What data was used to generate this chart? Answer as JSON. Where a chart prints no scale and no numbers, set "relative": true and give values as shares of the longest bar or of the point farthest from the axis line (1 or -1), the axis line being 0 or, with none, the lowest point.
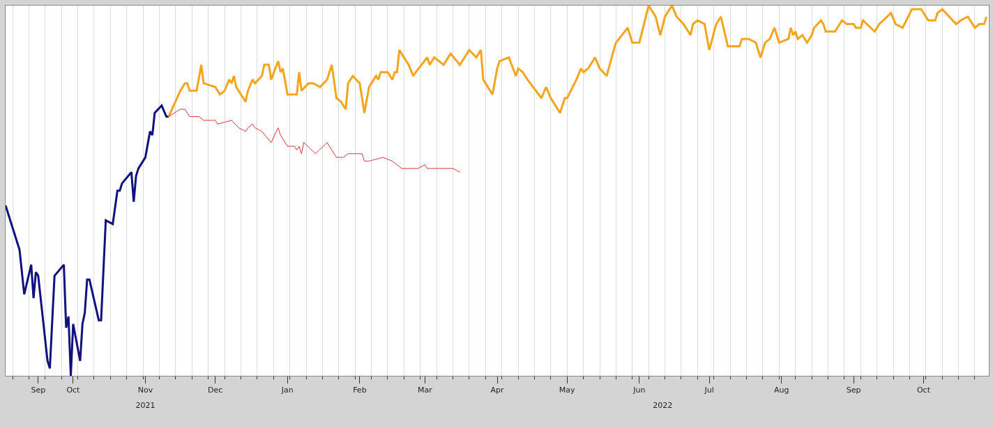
{
  "chart_data": {
    "type": "line",
    "relative": true,
    "grid": "x",
    "marker": "none",
    "line_style": "solid",
    "xlim": [
      "2021-09-02",
      "2022-10-29"
    ],
    "xticks": [
      {
        "value": "2021-09-16",
        "label": "Sep"
      },
      {
        "value": "2021-10-01",
        "label": "Oct"
      },
      {
        "value": "2021-11-01",
        "label": "Nov"
      },
      {
        "value": "2021-12-01",
        "label": "Dec"
      },
      {
        "value": "2022-01-01",
        "label": "Jan"
      },
      {
        "value": "2022-02-01",
        "label": "Feb"
      },
      {
        "value": "2022-03-01",
        "label": "Mar"
      },
      {
        "value": "2022-04-01",
        "label": "Apr"
      },
      {
        "value": "2022-05-01",
        "label": "May"
      },
      {
        "value": "2022-06-01",
        "label": "Jun"
      },
      {
        "value": "2022-07-01",
        "label": "Jul"
      },
      {
        "value": "2022-08-01",
        "label": "Aug"
      },
      {
        "value": "2022-09-01",
        "label": "Sep"
      },
      {
        "value": "2022-10-01",
        "label": "Oct"
      }
    ],
    "x2lim": [
      "2021-09-02",
      "2022-10-29"
    ],
    "x2ticks": [
      {
        "value": "2021-11-01",
        "label": "2021"
      },
      {
        "value": "2022-06-11",
        "label": "2022"
      }
    ],
    "series": [
      {
        "color": "#10107e",
        "x": [
          "2021-09-02",
          "2021-09-08",
          "2021-09-10",
          "2021-09-13",
          "2021-09-14",
          "2021-09-15",
          "2021-09-16",
          "2021-09-20",
          "2021-09-21",
          "2021-09-23",
          "2021-09-27",
          "2021-09-28",
          "2021-09-29",
          "2021-09-30",
          "2021-10-01",
          "2021-10-04",
          "2021-10-05",
          "2021-10-06",
          "2021-10-07",
          "2021-10-08",
          "2021-10-12",
          "2021-10-13",
          "2021-10-15",
          "2021-10-18",
          "2021-10-20",
          "2021-10-21",
          "2021-10-22",
          "2021-10-26",
          "2021-10-27",
          "2021-10-28",
          "2021-10-29",
          "2021-11-01",
          "2021-11-03",
          "2021-11-04",
          "2021-11-05",
          "2021-11-08",
          "2021-11-10",
          "2021-11-11"
        ],
        "values": [
          0.46,
          0.34,
          0.22,
          0.3,
          0.21,
          0.28,
          0.27,
          0.04,
          0.02,
          0.27,
          0.3,
          0.13,
          0.16,
          0,
          0.14,
          0.04,
          0.14,
          0.17,
          0.26,
          0.26,
          0.15,
          0.15,
          0.42,
          0.41,
          0.5,
          0.5,
          0.52,
          0.55,
          0.47,
          0.54,
          0.56,
          0.59,
          0.66,
          0.65,
          0.71,
          0.73,
          0.7,
          0.7
        ]
      },
      {
        "color": "#f5a51c",
        "x": [
          "2021-11-11",
          "2021-11-16",
          "2021-11-18",
          "2021-11-19",
          "2021-11-20",
          "2021-11-23",
          "2021-11-25",
          "2021-11-26",
          "2021-12-01",
          "2021-12-03",
          "2021-12-05",
          "2021-12-07",
          "2021-12-08",
          "2021-12-09",
          "2021-12-10",
          "2021-12-12",
          "2021-12-14",
          "2021-12-15",
          "2021-12-17",
          "2021-12-18",
          "2021-12-21",
          "2021-12-22",
          "2021-12-24",
          "2021-12-25",
          "2021-12-28",
          "2021-12-29",
          "2021-12-30",
          "2022-01-01",
          "2022-01-04",
          "2022-01-05",
          "2022-01-06",
          "2022-01-07",
          "2022-01-10",
          "2022-01-12",
          "2022-01-15",
          "2022-01-18",
          "2022-01-20",
          "2022-01-22",
          "2022-01-24",
          "2022-01-26",
          "2022-01-27",
          "2022-01-29",
          "2022-02-01",
          "2022-02-03",
          "2022-02-05",
          "2022-02-08",
          "2022-02-09",
          "2022-02-10",
          "2022-02-12",
          "2022-02-13",
          "2022-02-15",
          "2022-02-16",
          "2022-02-17",
          "2022-02-18",
          "2022-02-22",
          "2022-02-24",
          "2022-02-25",
          "2022-03-02",
          "2022-03-03",
          "2022-03-05",
          "2022-03-09",
          "2022-03-12",
          "2022-03-16",
          "2022-03-18",
          "2022-03-20",
          "2022-03-23",
          "2022-03-25",
          "2022-03-26",
          "2022-03-30",
          "2022-04-01",
          "2022-04-02",
          "2022-04-06",
          "2022-04-09",
          "2022-04-10",
          "2022-04-12",
          "2022-04-14",
          "2022-04-20",
          "2022-04-22",
          "2022-04-24",
          "2022-04-28",
          "2022-04-30",
          "2022-05-01",
          "2022-05-05",
          "2022-05-07",
          "2022-05-08",
          "2022-05-10",
          "2022-05-13",
          "2022-05-15",
          "2022-05-18",
          "2022-05-21",
          "2022-05-22",
          "2022-05-27",
          "2022-05-29",
          "2022-06-01",
          "2022-06-03",
          "2022-06-05",
          "2022-06-08",
          "2022-06-10",
          "2022-06-12",
          "2022-06-15",
          "2022-06-17",
          "2022-06-20",
          "2022-06-23",
          "2022-06-24",
          "2022-06-26",
          "2022-06-29",
          "2022-07-01",
          "2022-07-04",
          "2022-07-06",
          "2022-07-09",
          "2022-07-14",
          "2022-07-15",
          "2022-07-18",
          "2022-07-21",
          "2022-07-23",
          "2022-07-25",
          "2022-07-27",
          "2022-07-29",
          "2022-07-31",
          "2022-08-04",
          "2022-08-05",
          "2022-08-06",
          "2022-08-07",
          "2022-08-08",
          "2022-08-10",
          "2022-08-12",
          "2022-08-14",
          "2022-08-15",
          "2022-08-18",
          "2022-08-19",
          "2022-08-20",
          "2022-08-24",
          "2022-08-27",
          "2022-08-29",
          "2022-09-01",
          "2022-09-02",
          "2022-09-04",
          "2022-09-05",
          "2022-09-10",
          "2022-09-12",
          "2022-09-17",
          "2022-09-19",
          "2022-09-22",
          "2022-09-26",
          "2022-09-30",
          "2022-10-03",
          "2022-10-06",
          "2022-10-07",
          "2022-10-09",
          "2022-10-15",
          "2022-10-17",
          "2022-10-20",
          "2022-10-23",
          "2022-10-25",
          "2022-10-27",
          "2022-10-28"
        ],
        "values": [
          0.7,
          0.77,
          0.79,
          0.79,
          0.77,
          0.77,
          0.84,
          0.79,
          0.78,
          0.76,
          0.77,
          0.8,
          0.79,
          0.81,
          0.78,
          0.76,
          0.74,
          0.77,
          0.8,
          0.79,
          0.81,
          0.84,
          0.84,
          0.8,
          0.85,
          0.82,
          0.83,
          0.76,
          0.76,
          0.76,
          0.82,
          0.77,
          0.79,
          0.79,
          0.78,
          0.8,
          0.84,
          0.75,
          0.74,
          0.72,
          0.79,
          0.81,
          0.79,
          0.71,
          0.78,
          0.81,
          0.8,
          0.82,
          0.82,
          0.82,
          0.8,
          0.82,
          0.82,
          0.88,
          0.84,
          0.81,
          0.82,
          0.86,
          0.84,
          0.86,
          0.84,
          0.87,
          0.84,
          0.86,
          0.88,
          0.86,
          0.88,
          0.8,
          0.76,
          0.83,
          0.85,
          0.86,
          0.81,
          0.83,
          0.82,
          0.8,
          0.75,
          0.78,
          0.75,
          0.71,
          0.75,
          0.75,
          0.8,
          0.83,
          0.82,
          0.83,
          0.86,
          0.83,
          0.81,
          0.88,
          0.9,
          0.94,
          0.9,
          0.9,
          0.95,
          1.0,
          0.97,
          0.92,
          0.97,
          1.0,
          0.97,
          0.95,
          0.92,
          0.95,
          0.96,
          0.95,
          0.88,
          0.95,
          0.97,
          0.89,
          0.89,
          0.91,
          0.91,
          0.9,
          0.86,
          0.9,
          0.91,
          0.94,
          0.9,
          0.91,
          0.94,
          0.92,
          0.93,
          0.91,
          0.92,
          0.9,
          0.92,
          0.94,
          0.96,
          0.95,
          0.93,
          0.93,
          0.96,
          0.95,
          0.95,
          0.94,
          0.94,
          0.96,
          0.93,
          0.95,
          0.98,
          0.95,
          0.94,
          0.99,
          0.99,
          0.96,
          0.96,
          0.98,
          0.99,
          0.95,
          0.96,
          0.97,
          0.94,
          0.95,
          0.95,
          0.97
        ]
      },
      {
        "color": "#d9383a",
        "x": [
          "2021-11-11",
          "2021-11-16",
          "2021-11-18",
          "2021-11-20",
          "2021-11-23",
          "2021-11-24",
          "2021-11-26",
          "2021-12-01",
          "2021-12-02",
          "2021-12-08",
          "2021-12-11",
          "2021-12-14",
          "2021-12-15",
          "2021-12-17",
          "2021-12-18",
          "2021-12-21",
          "2021-12-25",
          "2021-12-28",
          "2021-12-29",
          "2022-01-01",
          "2022-01-04",
          "2022-01-05",
          "2022-01-06",
          "2022-01-07",
          "2022-01-08",
          "2022-01-13",
          "2022-01-18",
          "2022-01-22",
          "2022-01-25",
          "2022-01-27",
          "2022-01-29",
          "2022-02-02",
          "2022-02-03",
          "2022-02-04",
          "2022-02-05",
          "2022-02-11",
          "2022-02-15",
          "2022-02-19",
          "2022-02-23",
          "2022-02-24",
          "2022-02-26",
          "2022-03-01",
          "2022-03-02",
          "2022-03-05",
          "2022-03-07",
          "2022-03-10",
          "2022-03-13",
          "2022-03-16"
        ],
        "values": [
          0.7,
          0.72,
          0.72,
          0.7,
          0.7,
          0.7,
          0.69,
          0.69,
          0.68,
          0.69,
          0.67,
          0.66,
          0.67,
          0.68,
          0.67,
          0.66,
          0.63,
          0.67,
          0.65,
          0.62,
          0.62,
          0.61,
          0.62,
          0.6,
          0.63,
          0.6,
          0.63,
          0.59,
          0.59,
          0.6,
          0.6,
          0.6,
          0.58,
          0.58,
          0.58,
          0.59,
          0.58,
          0.56,
          0.56,
          0.56,
          0.56,
          0.57,
          0.56,
          0.56,
          0.56,
          0.56,
          0.56,
          0.55
        ]
      }
    ]
  }
}
